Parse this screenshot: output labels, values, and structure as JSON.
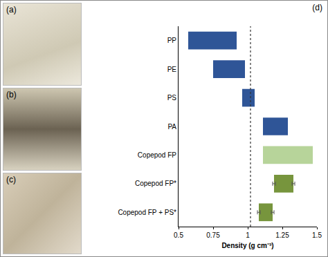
{
  "panels": [
    {
      "label": "(a)"
    },
    {
      "label": "(b)"
    },
    {
      "label": "(c)"
    }
  ],
  "chart_data": {
    "type": "bar",
    "orientation": "horizontal",
    "panel_label": "(d)",
    "x_label": "Density (g cm⁻³)",
    "categories": [
      "PP",
      "PE",
      "PS",
      "PA",
      "Copepod FP",
      "Copepod FP*",
      "Copepod FP + PS*"
    ],
    "low": [
      0.57,
      0.75,
      0.96,
      1.11,
      1.11,
      1.19,
      1.08
    ],
    "high": [
      0.92,
      0.98,
      1.05,
      1.29,
      1.47,
      1.33,
      1.18
    ],
    "errors": [
      null,
      null,
      null,
      null,
      null,
      0.01,
      0.01
    ],
    "colors": [
      "#2f5597",
      "#2f5597",
      "#2f5597",
      "#2f5597",
      "#b7d49a",
      "#77953d",
      "#77953d"
    ],
    "reference_line": {
      "value": 1.02,
      "line_style": "dotted"
    },
    "xlim": [
      0.5,
      1.5
    ],
    "xticks": [
      0.5,
      0.75,
      1,
      1.25,
      1.5
    ],
    "grid": false
  }
}
